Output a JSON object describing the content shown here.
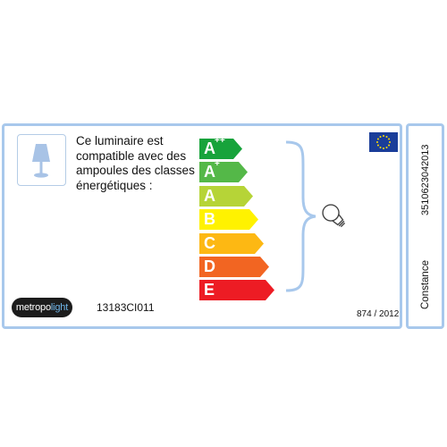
{
  "label": {
    "description": "Ce luminaire est compatible avec des ampoules des classes énergétiques :",
    "energy_classes": [
      {
        "letter": "A",
        "sup": "++",
        "color": "#17a33b"
      },
      {
        "letter": "A",
        "sup": "+",
        "color": "#54b848"
      },
      {
        "letter": "A",
        "sup": "",
        "color": "#b6d437"
      },
      {
        "letter": "B",
        "sup": "",
        "color": "#fff200"
      },
      {
        "letter": "C",
        "sup": "",
        "color": "#fdb813"
      },
      {
        "letter": "D",
        "sup": "",
        "color": "#f26522"
      },
      {
        "letter": "E",
        "sup": "",
        "color": "#ed1c24"
      }
    ],
    "brand": {
      "part1": "metropo",
      "part2": "light"
    },
    "model_code": "13183CI011",
    "regulation": "874 / 2012",
    "ean": "3510623042013",
    "product_name": "Constance",
    "icons": {
      "lamp": "table-lamp-icon",
      "bulb": "light-bulb-icon",
      "flag": "eu-flag-icon"
    },
    "colors": {
      "border": "#a8c8ec",
      "brace": "#a8c8ec"
    }
  }
}
